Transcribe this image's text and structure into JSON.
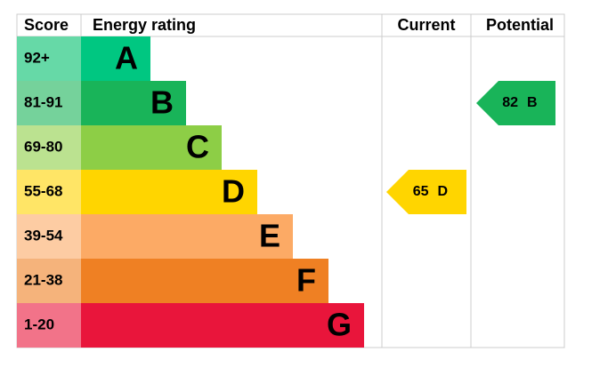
{
  "header": {
    "score": "Score",
    "rating": "Energy rating",
    "current": "Current",
    "potential": "Potential"
  },
  "bands": [
    {
      "score": "92+",
      "letter": "A",
      "color": "#00c781",
      "score_color": "#66d9a7"
    },
    {
      "score": "81-91",
      "letter": "B",
      "color": "#19b459",
      "score_color": "#75d29b"
    },
    {
      "score": "69-80",
      "letter": "C",
      "color": "#8dce46",
      "score_color": "#bbe290"
    },
    {
      "score": "55-68",
      "letter": "D",
      "color": "#ffd500",
      "score_color": "#ffe566"
    },
    {
      "score": "39-54",
      "letter": "E",
      "color": "#fcaa65",
      "score_color": "#fdcca3"
    },
    {
      "score": "21-38",
      "letter": "F",
      "color": "#ef8023",
      "score_color": "#f5b37b"
    },
    {
      "score": "1-20",
      "letter": "G",
      "color": "#e9153b",
      "score_color": "#f27389"
    }
  ],
  "current": {
    "value": 65,
    "band": "D"
  },
  "potential": {
    "value": 82,
    "band": "B"
  }
}
